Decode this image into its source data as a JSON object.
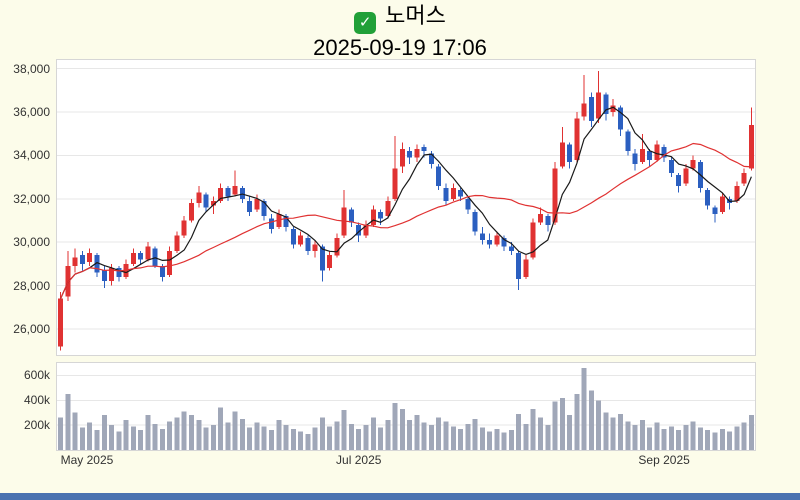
{
  "header": {
    "check_glyph": "✓",
    "title": "노머스",
    "timestamp": "2025-09-19 17:06"
  },
  "colors": {
    "background": "#FCFCEA",
    "panel_bg": "#FFFFFF",
    "panel_border": "#D6D6D6",
    "grid": "#E7E7E7",
    "up_candle": "#E03232",
    "down_candle": "#2B5FC0",
    "ma_fast": "#1A1A1A",
    "ma_slow": "#E03232",
    "volume_bar": "#A0A7B8",
    "axis_text": "#333333",
    "bottom_bar": "#4A72B0",
    "check_green": "#21A038"
  },
  "chart_data": {
    "type": "candlestick",
    "title": "노머스",
    "subtitle": "2025-09-19 17:06",
    "grid": true,
    "legend": false,
    "price_axis": {
      "range": [
        24800,
        38400
      ],
      "ticks": [
        {
          "value": 26000,
          "label": "26,000"
        },
        {
          "value": 28000,
          "label": "28,000"
        },
        {
          "value": 30000,
          "label": "30,000"
        },
        {
          "value": 32000,
          "label": "32,000"
        },
        {
          "value": 34000,
          "label": "34,000"
        },
        {
          "value": 36000,
          "label": "36,000"
        },
        {
          "value": 38000,
          "label": "38,000"
        }
      ]
    },
    "volume_axis": {
      "range_k": [
        0,
        700
      ],
      "ticks": [
        {
          "value_k": 200,
          "label": "200k"
        },
        {
          "value_k": 400,
          "label": "400k"
        },
        {
          "value_k": 600,
          "label": "600k"
        }
      ]
    },
    "x_ticks": [
      {
        "index": 0,
        "label": "May 2025",
        "align": "left"
      },
      {
        "index": 41,
        "label": "Jul 2025",
        "align": "center"
      },
      {
        "index": 83,
        "label": "Sep 2025",
        "align": "center"
      }
    ],
    "moving_averages": [
      {
        "name": "fast",
        "period": 5,
        "color_key": "ma_fast"
      },
      {
        "name": "slow",
        "period": 20,
        "color_key": "ma_slow"
      }
    ],
    "up_down_rule": "close >= open drawn red (up), close < open drawn blue (down)",
    "candle_format": [
      "open",
      "high",
      "low",
      "close",
      "volume_k"
    ],
    "candles": [
      [
        25200,
        27700,
        25000,
        27400,
        260
      ],
      [
        27500,
        29600,
        27300,
        28900,
        450
      ],
      [
        28900,
        29700,
        28600,
        29300,
        300
      ],
      [
        29400,
        29600,
        28700,
        29000,
        180
      ],
      [
        29100,
        29700,
        28900,
        29500,
        220
      ],
      [
        29400,
        29500,
        28400,
        28600,
        160
      ],
      [
        28700,
        28900,
        27900,
        28200,
        280
      ],
      [
        28200,
        29000,
        28000,
        28800,
        200
      ],
      [
        28800,
        28900,
        28200,
        28400,
        150
      ],
      [
        28400,
        29200,
        28300,
        29000,
        240
      ],
      [
        29000,
        29700,
        28900,
        29500,
        190
      ],
      [
        29500,
        29600,
        29000,
        29200,
        160
      ],
      [
        29200,
        30000,
        29100,
        29800,
        280
      ],
      [
        29700,
        29800,
        28800,
        28900,
        210
      ],
      [
        28900,
        29000,
        28200,
        28400,
        170
      ],
      [
        28500,
        29800,
        28400,
        29600,
        230
      ],
      [
        29600,
        30500,
        29500,
        30300,
        260
      ],
      [
        30300,
        31200,
        30200,
        31000,
        310
      ],
      [
        31000,
        32000,
        30900,
        31800,
        280
      ],
      [
        31800,
        32600,
        31600,
        32300,
        240
      ],
      [
        32200,
        32300,
        31400,
        31600,
        180
      ],
      [
        31700,
        32100,
        31300,
        31900,
        200
      ],
      [
        31900,
        32700,
        31800,
        32500,
        340
      ],
      [
        32500,
        32600,
        31900,
        32100,
        220
      ],
      [
        32200,
        33300,
        32100,
        32600,
        310
      ],
      [
        32500,
        32600,
        31800,
        32000,
        250
      ],
      [
        31900,
        32100,
        31200,
        31400,
        180
      ],
      [
        31500,
        32200,
        31400,
        32000,
        220
      ],
      [
        31900,
        32000,
        31000,
        31200,
        190
      ],
      [
        31100,
        31300,
        30400,
        30600,
        160
      ],
      [
        30700,
        31500,
        30600,
        31300,
        240
      ],
      [
        31200,
        31300,
        30500,
        30700,
        200
      ],
      [
        30600,
        30700,
        29700,
        29900,
        170
      ],
      [
        29900,
        30500,
        29800,
        30300,
        150
      ],
      [
        30200,
        30300,
        29400,
        29600,
        130
      ],
      [
        29600,
        30100,
        29300,
        29900,
        180
      ],
      [
        29800,
        29900,
        28200,
        28700,
        260
      ],
      [
        28800,
        29600,
        28700,
        29400,
        190
      ],
      [
        29400,
        30400,
        29300,
        30200,
        230
      ],
      [
        30300,
        32400,
        30200,
        31600,
        320
      ],
      [
        31500,
        31600,
        30700,
        30900,
        210
      ],
      [
        30800,
        30900,
        30000,
        30300,
        170
      ],
      [
        30300,
        31000,
        30200,
        30800,
        200
      ],
      [
        30800,
        31700,
        30700,
        31500,
        260
      ],
      [
        31400,
        31500,
        30800,
        31100,
        180
      ],
      [
        31200,
        32100,
        31100,
        31900,
        240
      ],
      [
        32000,
        34900,
        31900,
        33400,
        380
      ],
      [
        33500,
        34600,
        33200,
        34300,
        330
      ],
      [
        34200,
        34400,
        33600,
        33900,
        240
      ],
      [
        33900,
        34500,
        33700,
        34300,
        280
      ],
      [
        34400,
        34500,
        33900,
        34200,
        220
      ],
      [
        34100,
        34200,
        33400,
        33600,
        200
      ],
      [
        33500,
        33600,
        32400,
        32600,
        260
      ],
      [
        32500,
        32700,
        31700,
        31900,
        230
      ],
      [
        32000,
        32700,
        31900,
        32500,
        190
      ],
      [
        32400,
        32500,
        31900,
        32100,
        170
      ],
      [
        32000,
        32100,
        31300,
        31500,
        210
      ],
      [
        31400,
        31500,
        30300,
        30500,
        250
      ],
      [
        30400,
        30700,
        29900,
        30100,
        180
      ],
      [
        30100,
        30400,
        29700,
        29900,
        150
      ],
      [
        29900,
        30500,
        29800,
        30300,
        170
      ],
      [
        30200,
        30300,
        29600,
        29800,
        140
      ],
      [
        29800,
        30000,
        29400,
        29600,
        160
      ],
      [
        29500,
        29600,
        27800,
        28300,
        290
      ],
      [
        28400,
        29400,
        28300,
        29200,
        210
      ],
      [
        29300,
        31100,
        29200,
        30900,
        330
      ],
      [
        30900,
        31600,
        30800,
        31300,
        260
      ],
      [
        31200,
        31300,
        30500,
        30800,
        200
      ],
      [
        30900,
        33700,
        30800,
        33400,
        390
      ],
      [
        33500,
        35300,
        33400,
        34600,
        420
      ],
      [
        34500,
        34600,
        33400,
        33700,
        280
      ],
      [
        33800,
        36000,
        33700,
        35700,
        450
      ],
      [
        35800,
        37700,
        35600,
        36400,
        660
      ],
      [
        36700,
        36900,
        35300,
        35600,
        480
      ],
      [
        35700,
        37900,
        35500,
        36900,
        400
      ],
      [
        36800,
        36900,
        35600,
        35900,
        300
      ],
      [
        36000,
        36600,
        35800,
        36300,
        260
      ],
      [
        36200,
        36300,
        34900,
        35200,
        290
      ],
      [
        35100,
        35200,
        34000,
        34200,
        230
      ],
      [
        34100,
        34300,
        33300,
        33600,
        200
      ],
      [
        33700,
        35000,
        33600,
        34300,
        240
      ],
      [
        34200,
        34300,
        33500,
        33800,
        180
      ],
      [
        33800,
        34700,
        33700,
        34500,
        220
      ],
      [
        34400,
        34500,
        33700,
        33900,
        170
      ],
      [
        33800,
        33900,
        33000,
        33200,
        190
      ],
      [
        33100,
        33200,
        32300,
        32600,
        160
      ],
      [
        32700,
        33600,
        32600,
        33400,
        200
      ],
      [
        33400,
        34000,
        33300,
        33800,
        230
      ],
      [
        33700,
        33800,
        32300,
        32500,
        180
      ],
      [
        32400,
        32500,
        31500,
        31700,
        160
      ],
      [
        31600,
        31700,
        30900,
        31300,
        140
      ],
      [
        31400,
        32300,
        31300,
        32100,
        170
      ],
      [
        32000,
        32100,
        31500,
        31800,
        150
      ],
      [
        31900,
        32800,
        31800,
        32600,
        190
      ],
      [
        32700,
        33400,
        32600,
        33200,
        220
      ],
      [
        33400,
        36200,
        33300,
        35400,
        280
      ]
    ]
  }
}
